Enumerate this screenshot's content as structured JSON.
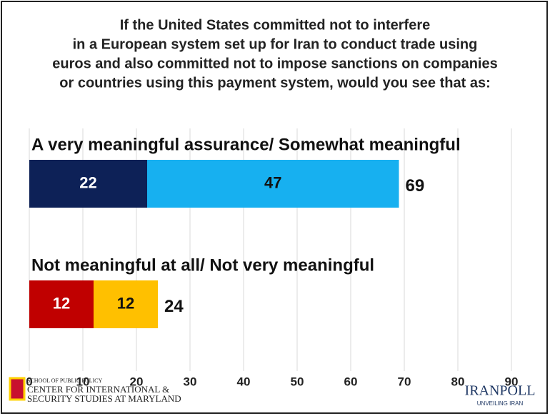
{
  "chart_data": {
    "type": "bar",
    "orientation": "horizontal",
    "stacked": true,
    "title": [
      "If the United States committed not to interfere",
      "in a European system set up for Iran to conduct trade using",
      "euros and also committed not to impose sanctions on companies",
      "or countries using this payment system, would you see that as:"
    ],
    "bars": [
      {
        "label": "A very meaningful assurance/ Somewhat meaningful",
        "segments": [
          {
            "value": 22,
            "color": "#0d2157"
          },
          {
            "value": 47,
            "color": "#17b0f0"
          }
        ],
        "total": 69
      },
      {
        "label": "Not meaningful at all/ Not very meaningful",
        "segments": [
          {
            "value": 12,
            "color": "#c00000"
          },
          {
            "value": 12,
            "color": "#ffc000"
          }
        ],
        "total": 24
      }
    ],
    "xlim": [
      0,
      90
    ],
    "xticks": [
      0,
      10,
      20,
      30,
      40,
      50,
      60,
      70,
      80,
      90
    ],
    "grid": true
  },
  "logos": {
    "left": [
      "SCHOOL OF PUBLIC POLICY",
      "CENTER FOR INTERNATIONAL &",
      "SECURITY STUDIES AT MARYLAND"
    ],
    "right": [
      "IRANPOLL",
      "UNVEILING IRAN"
    ]
  }
}
